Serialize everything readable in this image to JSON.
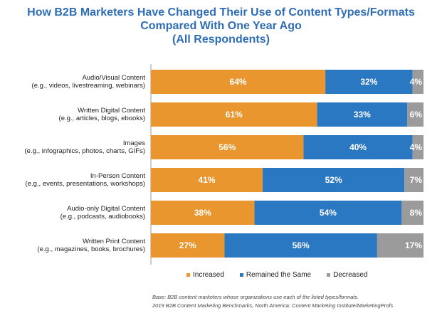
{
  "chart_data": {
    "type": "bar",
    "orientation": "horizontal",
    "stacked": true,
    "title": [
      "How B2B Marketers Have Changed Their Use of Content Types/Formats",
      "Compared With One Year Ago",
      "(All Respondents)"
    ],
    "categories": [
      [
        "Audio/Visual Content",
        "(e.g., videos, livestreaming, webinars)"
      ],
      [
        "Written Digital Content",
        "(e.g., articles, blogs, ebooks)"
      ],
      [
        "Images",
        "(e.g., infographics, photos, charts, GIFs)"
      ],
      [
        "In-Person Content",
        "(e.g., events, presentations, workshops)"
      ],
      [
        "Audio-only Digital Content",
        "(e.g., podcasts, audiobooks)"
      ],
      [
        "Written Print Content",
        "(e.g., magazines, books, brochures)"
      ]
    ],
    "series": [
      {
        "name": "Increased",
        "color": "#e9962f",
        "values": [
          64,
          61,
          56,
          41,
          38,
          27
        ]
      },
      {
        "name": "Remained the Same",
        "color": "#2b78c2",
        "values": [
          32,
          33,
          40,
          52,
          54,
          56
        ]
      },
      {
        "name": "Decreased",
        "color": "#9b9b9b",
        "values": [
          4,
          6,
          4,
          7,
          8,
          17
        ]
      }
    ],
    "value_suffix": "%",
    "xlim": [
      0,
      100
    ],
    "grid": false,
    "legend_placement": "bottom"
  },
  "footnotes": [
    "Base: B2B content marketers whose organizations use each of the listed types/formats.",
    "2019 B2B Content Marketing Benchmarks, North America: Content Marketing Institute/MarketingProfs"
  ]
}
